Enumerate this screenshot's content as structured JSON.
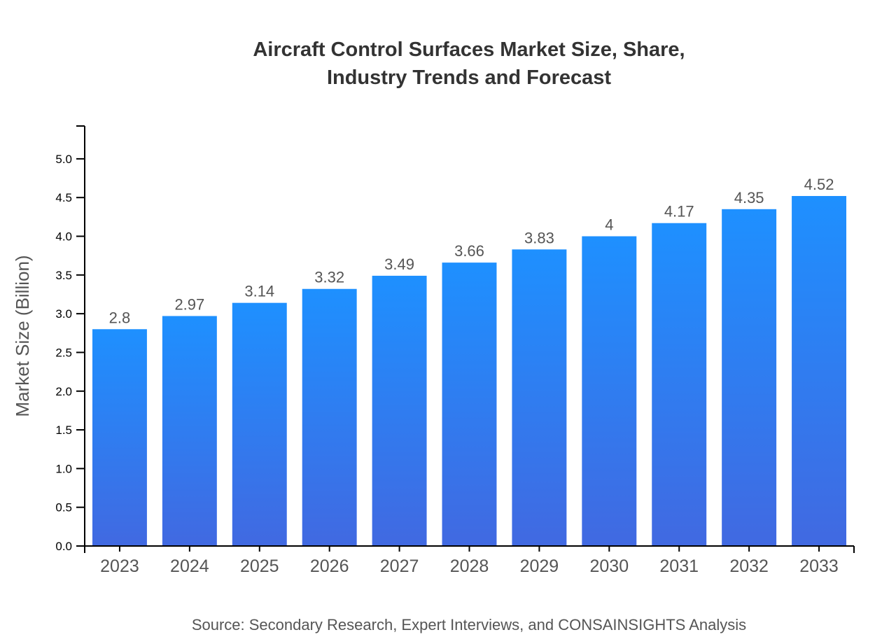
{
  "chart_data": {
    "type": "bar",
    "title": [
      "Aircraft Control Surfaces Market Size, Share,",
      "Industry Trends and Forecast"
    ],
    "xlabel": "",
    "ylabel": "Market Size (Billion)",
    "categories": [
      "2023",
      "2024",
      "2025",
      "2026",
      "2027",
      "2028",
      "2029",
      "2030",
      "2031",
      "2032",
      "2033"
    ],
    "values": [
      2.8,
      2.97,
      3.14,
      3.32,
      3.49,
      3.66,
      3.83,
      4,
      4.17,
      4.35,
      4.52
    ],
    "ylim": [
      0,
      5.424
    ],
    "yticks": [
      "0.0",
      "0.5",
      "1.0",
      "1.5",
      "2.0",
      "2.5",
      "3.0",
      "3.5",
      "4.0",
      "4.5",
      "5.0"
    ],
    "grid": false,
    "legend": "none",
    "colors": {
      "bar_top": "#1E90FF",
      "bar_bottom": "#4169E1"
    },
    "source": "Source: Secondary Research, Expert Interviews, and CONSAINSIGHTS Analysis"
  }
}
